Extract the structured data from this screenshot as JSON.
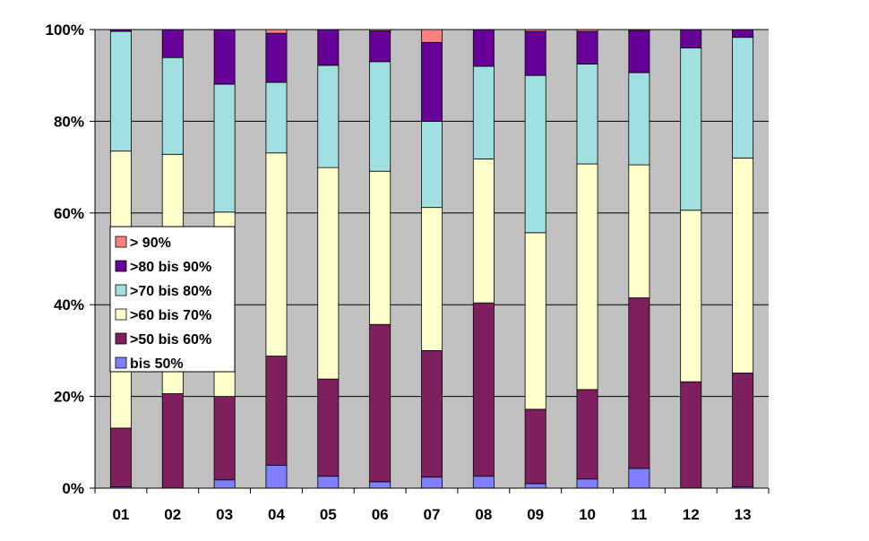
{
  "chart_data": {
    "type": "bar",
    "stacked": true,
    "percent": true,
    "categories": [
      "01",
      "02",
      "03",
      "04",
      "05",
      "06",
      "07",
      "08",
      "09",
      "10",
      "11",
      "12",
      "13"
    ],
    "y_tick_labels": [
      "0%",
      "20%",
      "40%",
      "60%",
      "80%",
      "100%"
    ],
    "ylim": [
      0,
      100
    ],
    "grid": true,
    "plot_background": "#C0C0C0",
    "legend_position": "left-center",
    "series": [
      {
        "name": "bis 50%",
        "color": "#8080FF",
        "values": [
          0.3,
          0.0,
          1.8,
          5.0,
          2.6,
          1.4,
          2.4,
          2.6,
          1.0,
          2.0,
          4.3,
          0.0,
          0.3
        ]
      },
      {
        "name": ">50 bis 60%",
        "color": "#7E1F5E",
        "values": [
          12.8,
          20.6,
          18.2,
          23.8,
          21.2,
          34.3,
          27.6,
          37.8,
          16.2,
          19.5,
          37.2,
          23.2,
          24.8
        ]
      },
      {
        "name": ">60 bis 70%",
        "color": "#FFFFCC",
        "values": [
          60.4,
          52.2,
          40.2,
          44.3,
          46.1,
          33.4,
          31.2,
          31.4,
          38.5,
          49.2,
          29.0,
          37.4,
          46.9
        ]
      },
      {
        "name": ">70 bis 80%",
        "color": "#A0E0E0",
        "values": [
          26.1,
          21.1,
          27.9,
          15.4,
          22.3,
          23.9,
          18.8,
          20.2,
          34.3,
          21.8,
          20.1,
          35.4,
          26.3
        ]
      },
      {
        "name": ">80 bis 90%",
        "color": "#660099",
        "values": [
          0.4,
          6.1,
          11.9,
          10.7,
          7.8,
          6.7,
          17.2,
          8.0,
          9.6,
          7.1,
          9.2,
          4.0,
          1.7
        ]
      },
      {
        "name": "> 90%",
        "color": "#FF8080",
        "values": [
          0.0,
          0.0,
          0.0,
          0.8,
          0.0,
          0.3,
          2.8,
          0.0,
          0.4,
          0.4,
          0.2,
          0.0,
          0.0
        ]
      }
    ]
  }
}
